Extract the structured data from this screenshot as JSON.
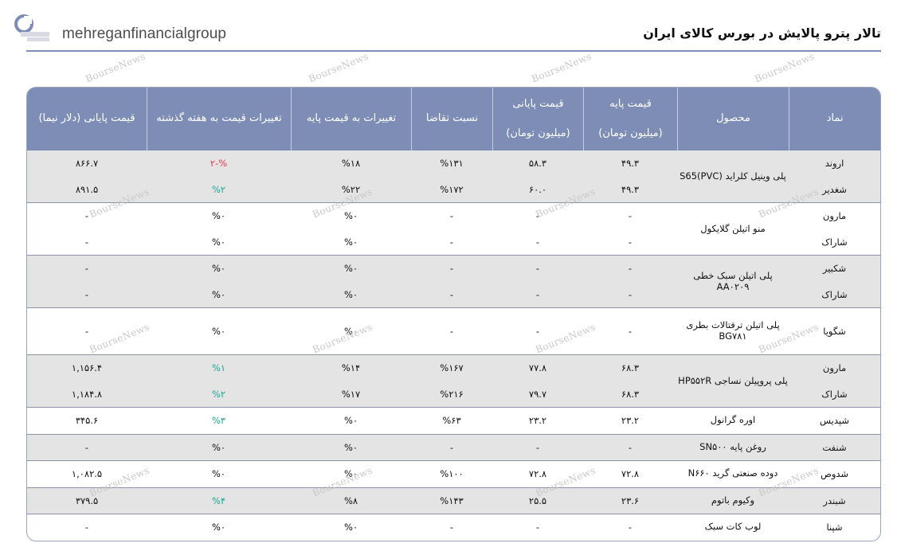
{
  "brand": {
    "name": "mehreganfinancialgroup",
    "accent": "#7e8db5"
  },
  "page_title": "تالار پترو پالایش در بورس کالای ایران",
  "watermark": "BourseNews",
  "table": {
    "headers": {
      "symbol": "نماد",
      "product": "محصول",
      "base_price_line1": "قیمت پایه",
      "base_price_line2": "(میلیون تومان)",
      "close_price_line1": "قیمت پایانی",
      "close_price_line2": "(میلیون تومان)",
      "demand_ratio": "نسبت تقاضا",
      "change_vs_base": "تغییرات به قیمت پایه",
      "change_vs_last_week": "تغییرات قیمت به هفته گذشته",
      "close_usd": "قیمت پایانی (دلار نیما)"
    },
    "groups": [
      {
        "product": "پلی وینیل کلراید (S65(PVC",
        "shaded": true,
        "rows": [
          {
            "symbol": "اروند",
            "base": "۴۹.۳",
            "close": "۵۸.۳",
            "ratio": "%۱۳۱",
            "ch_base": "%۱۸",
            "ch_week": "%-۲",
            "ch_week_state": "neg",
            "usd": "۸۶۶.۷"
          },
          {
            "symbol": "شغدیر",
            "base": "۴۹.۳",
            "close": "۶۰.۰",
            "ratio": "%۱۷۲",
            "ch_base": "%۲۲",
            "ch_week": "%۲",
            "ch_week_state": "pos",
            "usd": "۸۹۱.۵"
          }
        ]
      },
      {
        "product": "منو اتیلن گلایکول",
        "shaded": false,
        "rows": [
          {
            "symbol": "مارون",
            "base": "-",
            "close": "-",
            "ratio": "-",
            "ch_base": "%۰",
            "ch_week": "%۰",
            "ch_week_state": "none",
            "usd": "-"
          },
          {
            "symbol": "شاراک",
            "base": "-",
            "close": "-",
            "ratio": "-",
            "ch_base": "%۰",
            "ch_week": "%۰",
            "ch_week_state": "none",
            "usd": "-"
          }
        ]
      },
      {
        "product": "پلی اتیلن سبک خطی AA۰۲۰۹",
        "shaded": true,
        "rows": [
          {
            "symbol": "شکبیر",
            "base": "-",
            "close": "-",
            "ratio": "-",
            "ch_base": "%۰",
            "ch_week": "%۰",
            "ch_week_state": "none",
            "usd": "-"
          },
          {
            "symbol": "شاراک",
            "base": "-",
            "close": "-",
            "ratio": "-",
            "ch_base": "%۰",
            "ch_week": "%۰",
            "ch_week_state": "none",
            "usd": "-"
          }
        ]
      },
      {
        "product": "پلی اتیلن ترفتالات بطری BG۷۸۱",
        "shaded": false,
        "tall": true,
        "rows": [
          {
            "symbol": "شگویا",
            "base": "-",
            "close": "-",
            "ratio": "-",
            "ch_base": "%۰",
            "ch_week": "%۰",
            "ch_week_state": "none",
            "usd": "-"
          }
        ]
      },
      {
        "product": "پلی پروپیلن نساجی HP۵۵۲R",
        "shaded": true,
        "rows": [
          {
            "symbol": "مارون",
            "base": "۶۸.۳",
            "close": "۷۷.۸",
            "ratio": "%۱۶۷",
            "ch_base": "%۱۴",
            "ch_week": "%۱",
            "ch_week_state": "pos",
            "usd": "۱,۱۵۶.۴"
          },
          {
            "symbol": "شاراک",
            "base": "۶۸.۳",
            "close": "۷۹.۷",
            "ratio": "%۲۱۶",
            "ch_base": "%۱۷",
            "ch_week": "%۲",
            "ch_week_state": "pos",
            "usd": "۱,۱۸۴.۸"
          }
        ]
      },
      {
        "product": "اوره گرانول",
        "shaded": false,
        "rows": [
          {
            "symbol": "شپدیس",
            "base": "۲۳.۲",
            "close": "۲۳.۲",
            "ratio": "%۶۳",
            "ch_base": "%۰",
            "ch_week": "%۳",
            "ch_week_state": "pos",
            "usd": "۳۴۵.۶"
          }
        ]
      },
      {
        "product": "روغن پایه SN۵۰۰",
        "shaded": true,
        "rows": [
          {
            "symbol": "شنفت",
            "base": "-",
            "close": "-",
            "ratio": "-",
            "ch_base": "%۰",
            "ch_week": "%۰",
            "ch_week_state": "none",
            "usd": "-"
          }
        ]
      },
      {
        "product": "دوده صنعتی گرید N۶۶۰",
        "shaded": false,
        "rows": [
          {
            "symbol": "شدوص",
            "base": "۷۲.۸",
            "close": "۷۲.۸",
            "ratio": "%۱۰۰",
            "ch_base": "%۰",
            "ch_week": "%۰",
            "ch_week_state": "none",
            "usd": "۱,۰۸۲.۵"
          }
        ]
      },
      {
        "product": "وکیوم باتوم",
        "shaded": true,
        "rows": [
          {
            "symbol": "شبندر",
            "base": "۲۳.۶",
            "close": "۲۵.۵",
            "ratio": "%۱۴۳",
            "ch_base": "%۸",
            "ch_week": "%۴",
            "ch_week_state": "pos",
            "usd": "۳۷۹.۵"
          }
        ]
      },
      {
        "product": "لوب کات سبک",
        "shaded": false,
        "rows": [
          {
            "symbol": "شپنا",
            "base": "-",
            "close": "-",
            "ratio": "-",
            "ch_base": "%۰",
            "ch_week": "%۰",
            "ch_week_state": "none",
            "usd": "-"
          }
        ]
      }
    ]
  }
}
